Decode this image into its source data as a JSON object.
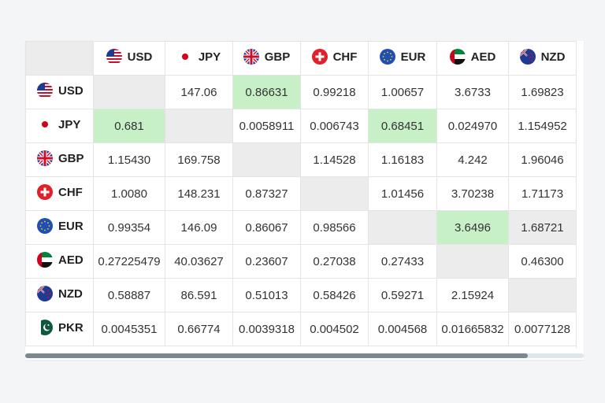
{
  "currencies": [
    {
      "code": "USD",
      "flag": "us-flag-icon"
    },
    {
      "code": "JPY",
      "flag": "jp-flag-icon"
    },
    {
      "code": "GBP",
      "flag": "gb-flag-icon"
    },
    {
      "code": "CHF",
      "flag": "ch-flag-icon"
    },
    {
      "code": "EUR",
      "flag": "eu-flag-icon"
    },
    {
      "code": "AED",
      "flag": "ae-flag-icon"
    },
    {
      "code": "NZD",
      "flag": "nz-flag-icon"
    },
    {
      "code": "PKR",
      "flag": "pk-flag-icon"
    }
  ],
  "columns": [
    "USD",
    "JPY",
    "GBP",
    "CHF",
    "EUR",
    "AED",
    "NZD"
  ],
  "rows": [
    {
      "code": "USD",
      "cells": [
        "",
        "147.06",
        "0.86631",
        "0.99218",
        "1.00657",
        "3.6733",
        "1.69823"
      ]
    },
    {
      "code": "JPY",
      "cells": [
        "0.681",
        "",
        "0.0058911",
        "0.006743",
        "0.68451",
        "0.024970",
        "1.154952"
      ]
    },
    {
      "code": "GBP",
      "cells": [
        "1.15430",
        "169.758",
        "",
        "1.14528",
        "1.16183",
        "4.242",
        "1.96046"
      ]
    },
    {
      "code": "CHF",
      "cells": [
        "1.0080",
        "148.231",
        "0.87327",
        "",
        "1.01456",
        "3.70238",
        "1.71173"
      ]
    },
    {
      "code": "EUR",
      "cells": [
        "0.99354",
        "146.09",
        "0.86067",
        "0.98566",
        "",
        "3.6496",
        "1.68721"
      ]
    },
    {
      "code": "AED",
      "cells": [
        "0.27225479",
        "40.03627",
        "0.23607",
        "0.27038",
        "0.27433",
        "",
        "0.46300"
      ]
    },
    {
      "code": "NZD",
      "cells": [
        "0.58887",
        "86.591",
        "0.51013",
        "0.58426",
        "0.59271",
        "2.15924",
        ""
      ]
    },
    {
      "code": "PKR",
      "cells": [
        "0.0045351",
        "0.66774",
        "0.0039318",
        "0.004502",
        "0.004568",
        "0.01665832",
        "0.0077128"
      ]
    }
  ],
  "highlight_cells": [
    [
      0,
      2
    ],
    [
      1,
      0
    ],
    [
      1,
      4
    ],
    [
      4,
      5
    ]
  ],
  "extra_gray_cells": [
    [
      4,
      6
    ]
  ],
  "colors": {
    "highlight": "#c7f0c7",
    "empty": "#ececec",
    "grid": "#e4e4e4"
  },
  "scroll": {
    "thumb_fraction": 0.9
  }
}
